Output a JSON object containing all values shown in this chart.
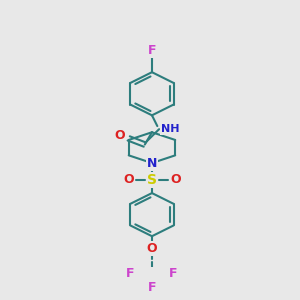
{
  "bg_color": "#e8e8e8",
  "bond_color": "#2d7d7d",
  "bond_width": 1.5,
  "atom_colors": {
    "F": "#cc44cc",
    "O": "#dd2222",
    "N": "#2222cc",
    "S": "#cccc00"
  },
  "figsize": [
    3.0,
    3.0
  ],
  "dpi": 100
}
